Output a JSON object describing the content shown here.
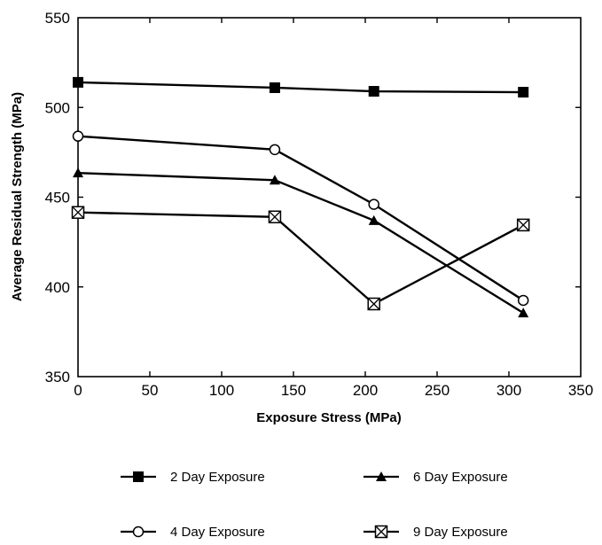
{
  "chart_data": {
    "type": "line",
    "title": "",
    "xlabel": "Exposure Stress (MPa)",
    "ylabel": "Average Residual Strength (MPa)",
    "xlim": [
      0,
      350
    ],
    "ylim": [
      350,
      550
    ],
    "xticks": [
      0,
      50,
      100,
      150,
      200,
      250,
      300,
      350
    ],
    "yticks": [
      350,
      400,
      450,
      500,
      550
    ],
    "grid": false,
    "legend_position": "bottom",
    "series": [
      {
        "name": "2 Day Exposure",
        "marker": "filled-square",
        "color": "#000000",
        "x": [
          0,
          137,
          206,
          310
        ],
        "y": [
          514,
          511,
          509,
          508.5
        ]
      },
      {
        "name": "4 Day Exposure",
        "marker": "open-circle",
        "color": "#000000",
        "x": [
          0,
          137,
          206,
          310
        ],
        "y": [
          484,
          476.5,
          446,
          392.5
        ]
      },
      {
        "name": "6 Day Exposure",
        "marker": "filled-triangle",
        "color": "#000000",
        "x": [
          0,
          137,
          206,
          310
        ],
        "y": [
          463.5,
          459.5,
          437,
          385.5
        ]
      },
      {
        "name": "9 Day Exposure",
        "marker": "crossed-square",
        "color": "#000000",
        "x": [
          0,
          137,
          206,
          310
        ],
        "y": [
          441.5,
          439,
          390.5,
          434.5
        ]
      }
    ]
  }
}
